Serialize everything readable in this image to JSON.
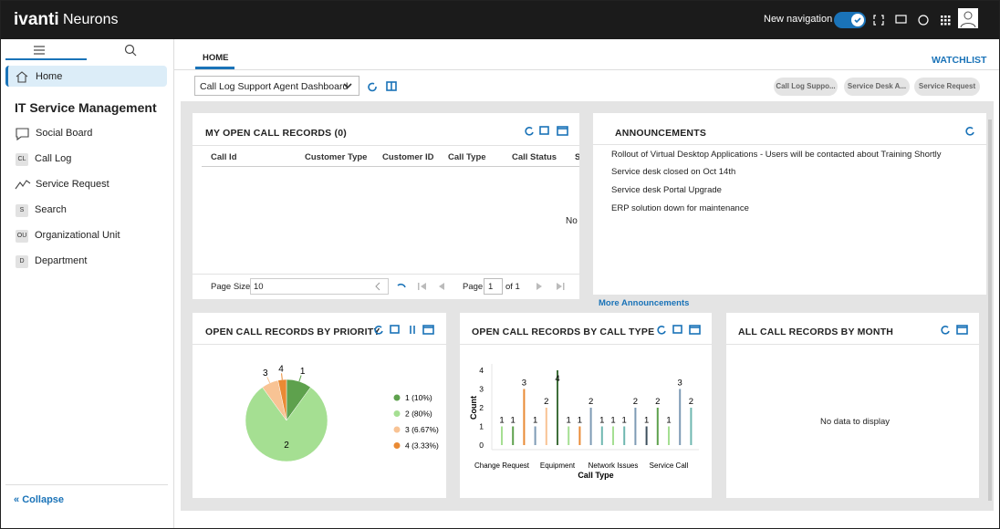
{
  "header": {
    "brand": "ivanti",
    "product": "Neurons",
    "new_navigation": "New navigation"
  },
  "sidebar": {
    "home": "Home",
    "section": "IT Service Management",
    "items": [
      {
        "label": "Social Board"
      },
      {
        "badge": "CL",
        "label": "Call Log"
      },
      {
        "label": "Service Request"
      },
      {
        "badge": "S",
        "label": "Search"
      },
      {
        "badge": "OU",
        "label": "Organizational Unit"
      },
      {
        "badge": "D",
        "label": "Department"
      }
    ],
    "collapse": "Collapse"
  },
  "tabs": {
    "home": "HOME",
    "watchlist": "WATCHLIST"
  },
  "toolbar": {
    "dashboard": "Call Log Support Agent Dashboard",
    "chips": [
      "Call Log Suppo...",
      "Service Desk A...",
      "Service Request"
    ]
  },
  "call_records": {
    "title": "MY OPEN CALL RECORDS (0)",
    "columns": [
      "Call Id",
      "Customer Type",
      "Customer ID",
      "Call Type",
      "Call Status",
      "S"
    ],
    "empty": "No",
    "pager": {
      "page_size_label": "Page Size",
      "page_size": "10",
      "page_label": "Page",
      "page": "1",
      "of": "of 1"
    }
  },
  "announcements": {
    "title": "ANNOUNCEMENTS",
    "items": [
      "Rollout of Virtual Desktop Applications - Users will be contacted about Training Shortly",
      "Service desk closed on Oct 14th",
      "Service desk Portal Upgrade",
      "ERP solution down for maintenance"
    ],
    "more": "More Announcements"
  },
  "month_widget": {
    "title": "ALL CALL RECORDS BY MONTH",
    "message": "No data to display"
  },
  "chart_data": [
    {
      "type": "pie",
      "title": "OPEN CALL RECORDS BY PRIORITY",
      "categories": [
        "1",
        "2",
        "3",
        "4"
      ],
      "values": [
        10,
        80,
        6.67,
        3.33
      ],
      "legend_labels": [
        "1 (10%)",
        "2 (80%)",
        "3 (6.67%)",
        "4 (3.33%)"
      ],
      "colors": [
        "#5ea14d",
        "#a5df92",
        "#f8c394",
        "#e98a34"
      ]
    },
    {
      "type": "bar",
      "title": "OPEN CALL RECORDS BY CALL TYPE",
      "x_label": "Call Type",
      "y_label": "Count",
      "categories": [
        "Change Request",
        null,
        null,
        null,
        null,
        "Equipment",
        null,
        null,
        null,
        null,
        "Network Issues",
        null,
        null,
        null,
        null,
        "Service Call",
        null,
        null
      ],
      "values": [
        1,
        1,
        3,
        1,
        2,
        4,
        1,
        1,
        2,
        1,
        1,
        1,
        2,
        1,
        2,
        1,
        3,
        2
      ],
      "colors": [
        "#a5df92",
        "#5ea14d",
        "#e98a34",
        "#7e9bb5",
        "#f8c394",
        "#3f6e3a",
        "#a5df92",
        "#e98a34",
        "#7e9bb5",
        "#6fb7b0",
        "#a5df92",
        "#6fb7b0",
        "#7e9bb5",
        "#3d4f5c",
        "#5ea14d",
        "#a5df92",
        "#7e9bb5",
        "#6fb7b0"
      ],
      "ylim": [
        0,
        4
      ],
      "yticks": [
        0,
        1,
        2,
        3,
        4
      ],
      "grid": false
    }
  ]
}
